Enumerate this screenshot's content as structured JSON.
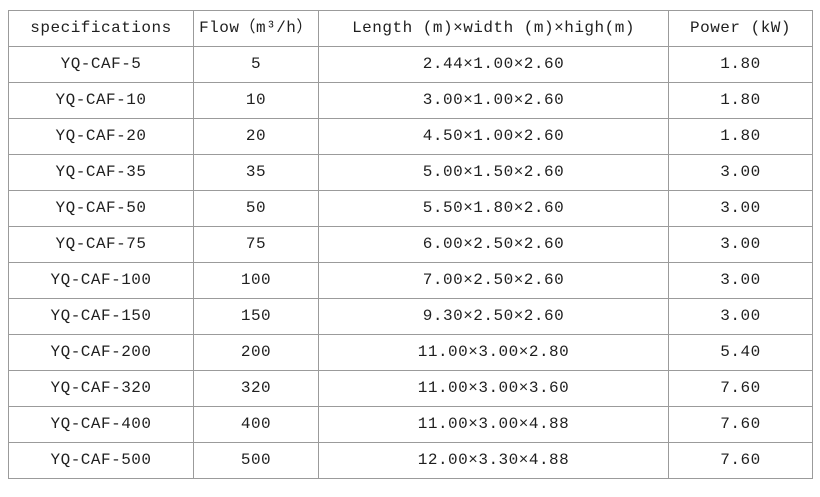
{
  "page": {
    "background": "#ffffff",
    "border_color": "#9b9b9b",
    "text_color": "#1f1f1f"
  },
  "table": {
    "columns": [
      "specifications",
      "Flow（m³/h）",
      "Length (m)×width (m)×high(m)",
      "Power (kW)"
    ],
    "rows": [
      [
        "YQ-CAF-5",
        "5",
        "2.44×1.00×2.60",
        "1.80"
      ],
      [
        "YQ-CAF-10",
        "10",
        "3.00×1.00×2.60",
        "1.80"
      ],
      [
        "YQ-CAF-20",
        "20",
        "4.50×1.00×2.60",
        "1.80"
      ],
      [
        "YQ-CAF-35",
        "35",
        "5.00×1.50×2.60",
        "3.00"
      ],
      [
        "YQ-CAF-50",
        "50",
        "5.50×1.80×2.60",
        "3.00"
      ],
      [
        "YQ-CAF-75",
        "75",
        "6.00×2.50×2.60",
        "3.00"
      ],
      [
        "YQ-CAF-100",
        "100",
        "7.00×2.50×2.60",
        "3.00"
      ],
      [
        "YQ-CAF-150",
        "150",
        "9.30×2.50×2.60",
        "3.00"
      ],
      [
        "YQ-CAF-200",
        "200",
        "11.00×3.00×2.80",
        "5.40"
      ],
      [
        "YQ-CAF-320",
        "320",
        "11.00×3.00×3.60",
        "7.60"
      ],
      [
        "YQ-CAF-400",
        "400",
        "11.00×3.00×4.88",
        "7.60"
      ],
      [
        "YQ-CAF-500",
        "500",
        "12.00×3.30×4.88",
        "7.60"
      ]
    ]
  },
  "chart_data": {
    "type": "table",
    "title": "",
    "columns": [
      "specifications",
      "Flow（m³/h）",
      "Length (m)×width (m)×high(m)",
      "Power (kW)"
    ],
    "rows": [
      [
        "YQ-CAF-5",
        "5",
        "2.44×1.00×2.60",
        "1.80"
      ],
      [
        "YQ-CAF-10",
        "10",
        "3.00×1.00×2.60",
        "1.80"
      ],
      [
        "YQ-CAF-20",
        "20",
        "4.50×1.00×2.60",
        "1.80"
      ],
      [
        "YQ-CAF-35",
        "35",
        "5.00×1.50×2.60",
        "3.00"
      ],
      [
        "YQ-CAF-50",
        "50",
        "5.50×1.80×2.60",
        "3.00"
      ],
      [
        "YQ-CAF-75",
        "75",
        "6.00×2.50×2.60",
        "3.00"
      ],
      [
        "YQ-CAF-100",
        "100",
        "7.00×2.50×2.60",
        "3.00"
      ],
      [
        "YQ-CAF-150",
        "150",
        "9.30×2.50×2.60",
        "3.00"
      ],
      [
        "YQ-CAF-200",
        "200",
        "11.00×3.00×2.80",
        "5.40"
      ],
      [
        "YQ-CAF-320",
        "320",
        "11.00×3.00×3.60",
        "7.60"
      ],
      [
        "YQ-CAF-400",
        "400",
        "11.00×3.00×4.88",
        "7.60"
      ],
      [
        "YQ-CAF-500",
        "500",
        "12.00×3.30×4.88",
        "7.60"
      ]
    ]
  }
}
